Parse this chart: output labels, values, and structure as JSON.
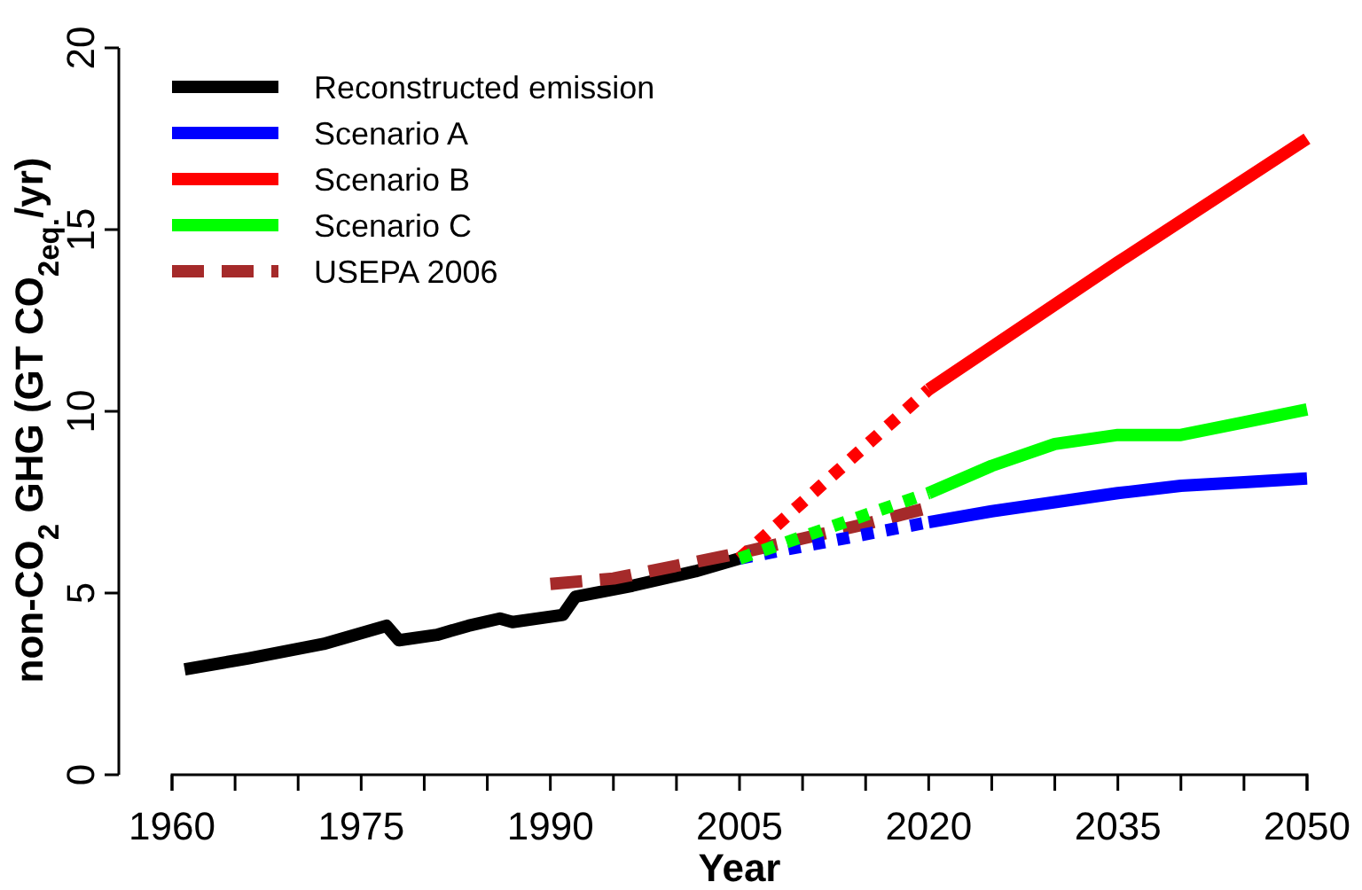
{
  "chart_data": {
    "type": "line",
    "xlabel": "Year",
    "ylabel": "non-CO$_{2}$ GHG (GT CO$_{2eq.}$/yr)",
    "xlim": [
      1960,
      2050
    ],
    "xticks": [
      1960,
      {
        "value": 1965,
        "label": null
      },
      {
        "value": 1970,
        "label": null
      },
      1975,
      {
        "value": 1980,
        "label": null
      },
      {
        "value": 1985,
        "label": null
      },
      1990,
      {
        "value": 1995,
        "label": null
      },
      {
        "value": 2000,
        "label": null
      },
      2005,
      {
        "value": 2010,
        "label": null
      },
      {
        "value": 2015,
        "label": null
      },
      2020,
      {
        "value": 2025,
        "label": null
      },
      {
        "value": 2030,
        "label": null
      },
      2035,
      {
        "value": 2040,
        "label": null
      },
      {
        "value": 2045,
        "label": null
      },
      2050
    ],
    "ylim": [
      0,
      20
    ],
    "yticks": [
      0,
      5,
      10,
      15,
      20
    ],
    "grid": false,
    "legend": "top left",
    "marker": "none",
    "series": [
      {
        "name": "Reconstructed emission",
        "color": "#000000",
        "line_style": "solid",
        "x": [
          1961,
          1966,
          1972,
          1977,
          1978,
          1981,
          1983.5,
          1986,
          1987,
          1991,
          1992,
          1996.5,
          2001.5,
          2005
        ],
        "values": [
          2.9,
          3.2,
          3.6,
          4.1,
          3.7,
          3.85,
          4.1,
          4.3,
          4.2,
          4.4,
          4.9,
          5.2,
          5.6,
          5.95
        ]
      },
      {
        "name": "Scenario A",
        "color": "#0000ff",
        "line_style": "solid",
        "x": [
          2020,
          2025,
          2030,
          2035,
          2040,
          2045,
          2050
        ],
        "values": [
          6.95,
          7.25,
          7.5,
          7.75,
          7.95,
          8.05,
          8.15
        ]
      },
      {
        "name": "Scenario B",
        "color": "#ff0000",
        "line_style": "solid",
        "x": [
          2020,
          2035,
          2050
        ],
        "values": [
          10.6,
          14.1,
          17.5
        ]
      },
      {
        "name": "Scenario C",
        "color": "#00ff00",
        "line_style": "solid",
        "x": [
          2020,
          2025,
          2030,
          2035,
          2040,
          2045,
          2050
        ],
        "values": [
          7.75,
          8.5,
          9.1,
          9.35,
          9.35,
          9.7,
          10.05
        ]
      },
      {
        "name": "USEPA 2006",
        "color": "#a52a2a",
        "line_style": "dashed",
        "x": [
          1990,
          1995,
          2000,
          2005,
          2010,
          2015,
          2020
        ],
        "values": [
          5.25,
          5.4,
          5.75,
          6.1,
          6.5,
          6.9,
          7.35
        ]
      },
      {
        "color": "#0000ff",
        "line_style": "dotted",
        "x": [
          2005,
          2020
        ],
        "values": [
          5.95,
          6.95
        ]
      },
      {
        "color": "#ff0000",
        "line_style": "dotted",
        "x": [
          2005,
          2020
        ],
        "values": [
          5.95,
          10.6
        ]
      },
      {
        "color": "#00ff00",
        "line_style": "dotted",
        "x": [
          2005,
          2020
        ],
        "values": [
          5.95,
          7.75
        ]
      }
    ]
  }
}
